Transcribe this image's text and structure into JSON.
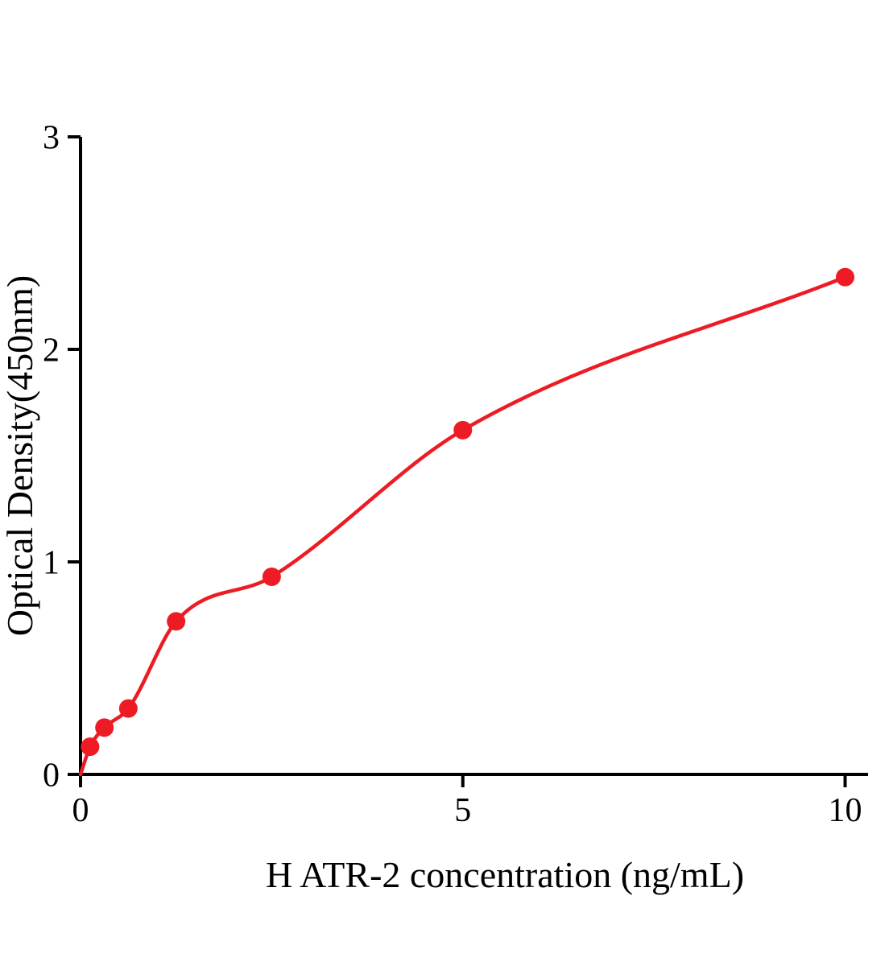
{
  "chart_data": {
    "type": "scatter",
    "title": "",
    "xlabel": "H ATR-2 concentration (ng/mL)",
    "ylabel": "Optical Density(450nm)",
    "x": [
      0.125,
      0.3125,
      0.625,
      1.25,
      2.5,
      5,
      10
    ],
    "y": [
      0.13,
      0.22,
      0.31,
      0.72,
      0.93,
      1.62,
      2.34
    ],
    "curve": {
      "type": "smooth-fit-through-points",
      "starts_at_origin": true
    },
    "xlim": [
      0,
      10.3
    ],
    "ylim": [
      0,
      3
    ],
    "x_ticks": [
      0,
      5,
      10
    ],
    "y_ticks": [
      0,
      1,
      2,
      3
    ],
    "grid": false,
    "legend": null,
    "colors": {
      "points": "#ed1c24",
      "line": "#ed1c24",
      "axis": "#000000"
    }
  }
}
